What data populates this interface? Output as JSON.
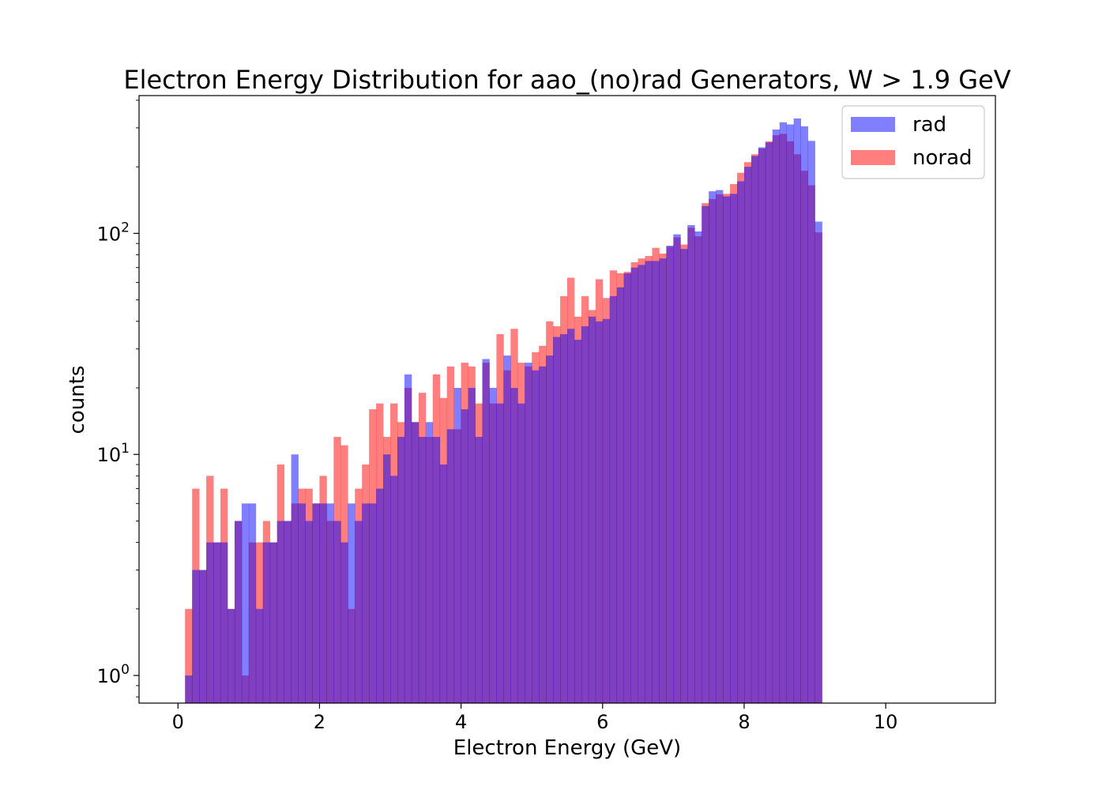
{
  "chart_data": {
    "type": "histogram",
    "title": "Electron Energy Distribution for aao_(no)rad Generators, W > 1.9 GeV",
    "xlabel": "Electron Energy (GeV)",
    "ylabel": "counts",
    "xlim": [
      -0.55,
      11.55
    ],
    "ylim": [
      0.75,
      420
    ],
    "yscale": "log",
    "x_ticks": [
      0,
      2,
      4,
      6,
      8,
      10
    ],
    "y_ticks": [
      {
        "value": 1,
        "label": "10",
        "exp": "0"
      },
      {
        "value": 10,
        "label": "10",
        "exp": "1"
      },
      {
        "value": 100,
        "label": "10",
        "exp": "2"
      }
    ],
    "grid": false,
    "legend_position": "top-right",
    "bin_start": 0.1,
    "bin_width": 0.1,
    "series": [
      {
        "name": "rad",
        "color": "#0000ff",
        "opacity": 0.5,
        "values": [
          1,
          3,
          3,
          4,
          4,
          4,
          2,
          5,
          6,
          6,
          2,
          4,
          4,
          5,
          5,
          10,
          6,
          5,
          6,
          6,
          6,
          5,
          4,
          6,
          5,
          6,
          6,
          7,
          10,
          8,
          12,
          23,
          14,
          12,
          14,
          12,
          9,
          13,
          20,
          16,
          20,
          12,
          27,
          20,
          17,
          28,
          20,
          17,
          26,
          24,
          25,
          28,
          34,
          35,
          37,
          33,
          38,
          42,
          40,
          41,
          52,
          57,
          66,
          70,
          72,
          75,
          75,
          77,
          88,
          99,
          85,
          109,
          102,
          133,
          155,
          157,
          147,
          151,
          172,
          200,
          224,
          245,
          258,
          295,
          318,
          311,
          331,
          305,
          262,
          113
        ]
      },
      {
        "name": "norad",
        "color": "#ff0000",
        "opacity": 0.5,
        "values": [
          2,
          7,
          3,
          8,
          4,
          7,
          2,
          5,
          1,
          4,
          4,
          5,
          4,
          9,
          5,
          6,
          7,
          7,
          6,
          8,
          5,
          12,
          11,
          2,
          7,
          9,
          16,
          17,
          12,
          17,
          14,
          20,
          14,
          19,
          12,
          23,
          18,
          25,
          13,
          26,
          25,
          17,
          26,
          17,
          35,
          24,
          37,
          26,
          25,
          29,
          31,
          40,
          38,
          52,
          63,
          42,
          52,
          45,
          62,
          51,
          68,
          66,
          67,
          74,
          77,
          79,
          86,
          81,
          87,
          96,
          89,
          106,
          97,
          137,
          143,
          150,
          151,
          167,
          188,
          210,
          228,
          242,
          261,
          278,
          282,
          261,
          228,
          192,
          165,
          101
        ]
      }
    ]
  }
}
